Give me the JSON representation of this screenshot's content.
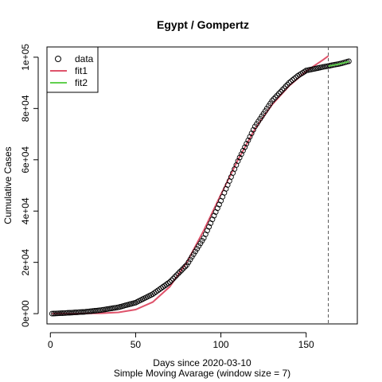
{
  "chart_data": {
    "type": "scatter",
    "title": "Egypt / Gompertz",
    "xlabel": "Days since 2020-03-10",
    "xlabel2": "Simple Moving Avarage (window size = 7)",
    "ylabel": "Cumulative Cases",
    "xlim": [
      -2,
      180
    ],
    "ylim": [
      -4000,
      104000
    ],
    "x_ticks": [
      0,
      50,
      100,
      150
    ],
    "x_tick_labels": [
      "0",
      "50",
      "100",
      "150"
    ],
    "y_ticks": [
      0,
      20000,
      40000,
      60000,
      80000,
      100000
    ],
    "y_tick_labels": [
      "0e+00",
      "2e+04",
      "4e+04",
      "6e+04",
      "8e+04",
      "1e+05"
    ],
    "vline_x": 163,
    "legend_position": "top-left",
    "colors": {
      "data": "#000000",
      "fit1": "#DF536B",
      "fit2": "#61D04F",
      "vline": "#555555"
    },
    "series": [
      {
        "name": "data",
        "style": "points",
        "x_start": 1,
        "x_end": 175,
        "x_control": [
          1,
          10,
          20,
          30,
          40,
          50,
          60,
          70,
          80,
          90,
          100,
          110,
          120,
          130,
          140,
          145,
          150,
          160,
          170,
          175
        ],
        "y_control": [
          0,
          300,
          700,
          1400,
          2500,
          4300,
          7600,
          12300,
          19000,
          29500,
          44000,
          59500,
          73000,
          83000,
          90000,
          92700,
          94800,
          96200,
          97500,
          98400
        ]
      },
      {
        "name": "fit1",
        "style": "line",
        "x": [
          1,
          10,
          20,
          30,
          40,
          50,
          60,
          70,
          80,
          90,
          100,
          110,
          120,
          130,
          140,
          150,
          160,
          163
        ],
        "y": [
          0,
          0,
          50,
          150,
          500,
          1600,
          4500,
          10500,
          20000,
          32500,
          46500,
          60000,
          72000,
          81500,
          88800,
          94500,
          99000,
          100500
        ]
      },
      {
        "name": "fit2",
        "style": "line",
        "x": [
          163,
          166,
          169,
          172,
          175
        ],
        "y": [
          96500,
          96900,
          97300,
          97800,
          98300
        ]
      }
    ]
  }
}
